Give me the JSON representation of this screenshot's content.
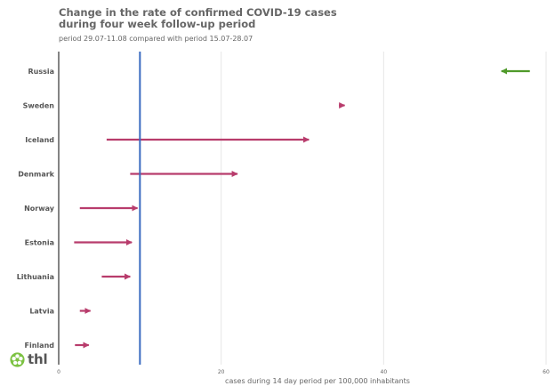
{
  "header": {
    "title_lines": [
      "Change in the rate of confirmed COVID-19 cases",
      "during four week follow-up period"
    ],
    "subtitle": "period 29.07-11.08 compared with period 15.07-28.07"
  },
  "logo": {
    "text": "thl",
    "icon": "flower-logo-icon",
    "color": "#7cc242"
  },
  "colors": {
    "increase": "#b83c6c",
    "decrease": "#4f9a2a",
    "reference": "#3a6bc0",
    "grid": "#e6e6e6",
    "axis": "#333333"
  },
  "chart_data": {
    "type": "arrow",
    "title": "Change in the rate of confirmed COVID-19 cases during four week follow-up period",
    "subtitle": "period 29.07-11.08 compared with period 15.07-28.07",
    "xlabel": "cases during 14 day period per 100,000 inhabitants",
    "ylabel": "",
    "xlim": [
      0,
      60
    ],
    "xticks": [
      0,
      20,
      40,
      60
    ],
    "reference_line": 10,
    "grid": true,
    "categories": [
      "Russia",
      "Sweden",
      "Iceland",
      "Denmark",
      "Norway",
      "Estonia",
      "Lithuania",
      "Latvia",
      "Finland"
    ],
    "series": [
      {
        "start": 58,
        "end": 54.5
      },
      {
        "start": 34.5,
        "end": 35.2
      },
      {
        "start": 5.9,
        "end": 30.8
      },
      {
        "start": 8.8,
        "end": 22.0
      },
      {
        "start": 2.6,
        "end": 9.7
      },
      {
        "start": 1.9,
        "end": 9.0
      },
      {
        "start": 5.3,
        "end": 8.8
      },
      {
        "start": 2.6,
        "end": 3.9
      },
      {
        "start": 2.0,
        "end": 3.7
      }
    ]
  }
}
